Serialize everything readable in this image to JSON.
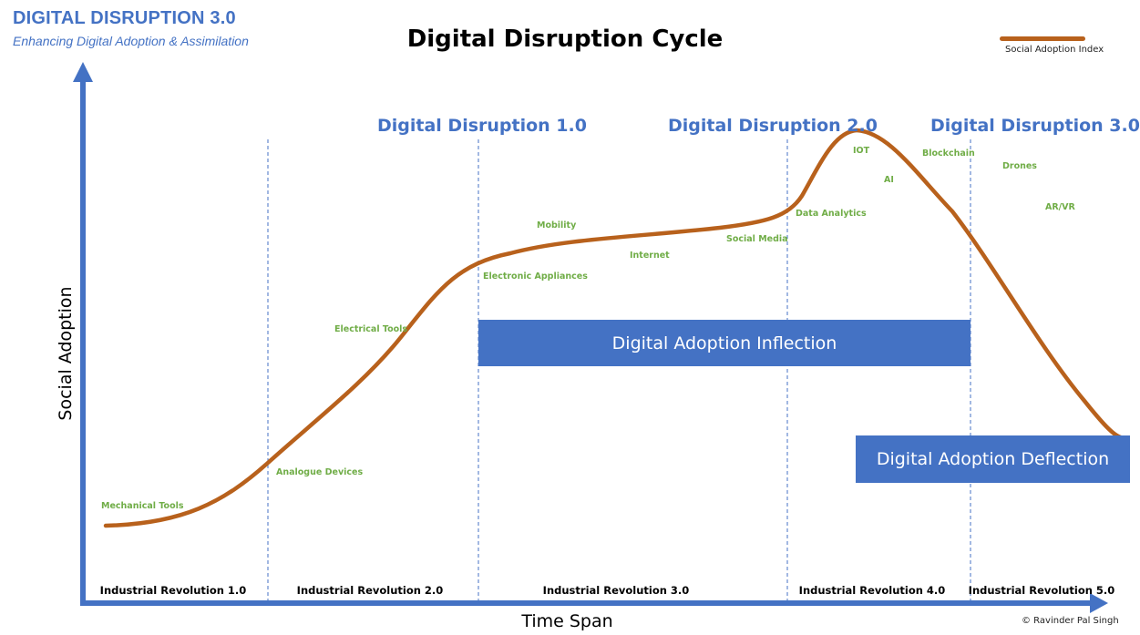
{
  "brand": {
    "title": "DIGITAL DISRUPTION 3.0",
    "subtitle": "Enhancing Digital Adoption & Assimilation"
  },
  "title": "Digital Disruption Cycle",
  "legend": {
    "label": "Social Adoption Index",
    "color": "#b8611c"
  },
  "axes": {
    "x_label": "Time Span",
    "y_label": "Social Adoption"
  },
  "eras": [
    "Digital Disruption 1.0",
    "Digital Disruption 2.0",
    "Digital Disruption 3.0"
  ],
  "technologies": {
    "mechanical_tools": "Mechanical Tools",
    "analogue_devices": "Analogue Devices",
    "electrical_tools": "Electrical Tools",
    "electronic_appliances": "Electronic Appliances",
    "mobility": "Mobility",
    "internet": "Internet",
    "social_media": "Social Media",
    "data_analytics": "Data Analytics",
    "iot": "IOT",
    "ai": "AI",
    "blockchain": "Blockchain",
    "drones": "Drones",
    "ar_vr": "AR/VR"
  },
  "boxes": {
    "inflection": "Digital Adoption Inflection",
    "deflection": "Digital Adoption Deflection"
  },
  "revolutions": [
    "Industrial Revolution 1.0",
    "Industrial Revolution 2.0",
    "Industrial Revolution 3.0",
    "Industrial Revolution 4.0",
    "Industrial Revolution 5.0"
  ],
  "copyright": "© Ravinder Pal Singh",
  "colors": {
    "axis": "#4472c4",
    "curve": "#b8611c",
    "technology_text": "#70ad47",
    "era_text": "#4472c4",
    "box_fill": "#4472c4"
  }
}
